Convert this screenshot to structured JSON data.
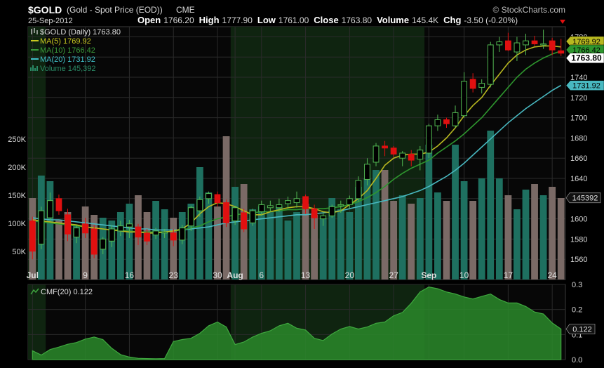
{
  "header": {
    "symbol": "$GOLD",
    "name": "(Gold - Spot Price (EOD))",
    "exchange": "CME",
    "watermark": "© StockCharts.com",
    "date": "25-Sep-2012",
    "ohlc": [
      {
        "label": "Open",
        "value": "1766.20"
      },
      {
        "label": "High",
        "value": "1777.90"
      },
      {
        "label": "Low",
        "value": "1761.00"
      },
      {
        "label": "Close",
        "value": "1763.80"
      },
      {
        "label": "Volume",
        "value": "145.4K"
      },
      {
        "label": "Chg",
        "value": "-3.50 (-0.20%)"
      }
    ]
  },
  "legend": [
    {
      "text": "$GOLD (Daily) 1763.80",
      "color": "#e0e0e0"
    },
    {
      "text": "MA(5) 1769.92",
      "color": "#c8c820"
    },
    {
      "text": "MA(10) 1766.42",
      "color": "#3a9a3a"
    },
    {
      "text": "MA(20) 1731.92",
      "color": "#40c0c8"
    },
    {
      "text": "Volume 145,392",
      "color": "#2a8a66"
    }
  ],
  "colors": {
    "up": "#52b852",
    "down": "#e01010",
    "ma5": "#b8b820",
    "ma10": "#2e962e",
    "ma20": "#48b8c0",
    "vol_up": "#1e7060",
    "vol_down": "#7a6a66",
    "cmf": "#2a8a2a",
    "grid": "#2b2b2b"
  },
  "chart_data": [
    {
      "type": "candlestick",
      "ylim": [
        1540,
        1790
      ],
      "yticks": [
        1560,
        1580,
        1600,
        1620,
        1640,
        1660,
        1680,
        1700,
        1720,
        1740,
        1760,
        1780
      ],
      "volume_ylim": [
        0,
        450000
      ],
      "volume_ticks": [
        {
          "value": 50000,
          "label": "50K"
        },
        {
          "value": 100000,
          "label": "100K"
        },
        {
          "value": 150000,
          "label": "150K"
        },
        {
          "value": 200000,
          "label": "200K"
        },
        {
          "value": 250000,
          "label": "250K"
        }
      ],
      "price_badges": [
        {
          "value": "1769.92",
          "price": 1769.92,
          "color": "#b8b820"
        },
        {
          "value": "1766.42",
          "price": 1766.42,
          "color": "#2e962e"
        },
        {
          "value": "1763.80",
          "price": 1763.8,
          "color": "#ffffff"
        },
        {
          "value": "1731.92",
          "price": 1731.92,
          "color": "#48b8c0"
        }
      ],
      "volume_badge": {
        "value": "145392",
        "volume": 145392
      },
      "xticks": [
        {
          "index": 0,
          "label": "Jul",
          "bold": true
        },
        {
          "index": 6,
          "label": "9"
        },
        {
          "index": 11,
          "label": "16"
        },
        {
          "index": 16,
          "label": "23"
        },
        {
          "index": 21,
          "label": "30"
        },
        {
          "index": 23,
          "label": "Aug",
          "bold": true
        },
        {
          "index": 26,
          "label": "6"
        },
        {
          "index": 31,
          "label": "13"
        },
        {
          "index": 36,
          "label": "20"
        },
        {
          "index": 41,
          "label": "27"
        },
        {
          "index": 45,
          "label": "Sep",
          "bold": true
        },
        {
          "index": 49,
          "label": "10"
        },
        {
          "index": 54,
          "label": "17"
        },
        {
          "index": 59,
          "label": "24"
        }
      ],
      "shaded_ranges": [
        [
          0,
          2
        ],
        [
          23,
          45
        ]
      ],
      "candles": [
        {
          "o": 1598,
          "h": 1602,
          "l": 1560,
          "c": 1568
        },
        {
          "o": 1575,
          "h": 1612,
          "l": 1570,
          "c": 1608
        },
        {
          "o": 1601,
          "h": 1626,
          "l": 1598,
          "c": 1618
        },
        {
          "o": 1620,
          "h": 1624,
          "l": 1604,
          "c": 1608
        },
        {
          "o": 1604,
          "h": 1610,
          "l": 1578,
          "c": 1585
        },
        {
          "o": 1582,
          "h": 1594,
          "l": 1576,
          "c": 1591
        },
        {
          "o": 1595,
          "h": 1601,
          "l": 1581,
          "c": 1586
        },
        {
          "o": 1590,
          "h": 1594,
          "l": 1561,
          "c": 1565
        },
        {
          "o": 1570,
          "h": 1582,
          "l": 1565,
          "c": 1580
        },
        {
          "o": 1578,
          "h": 1594,
          "l": 1572,
          "c": 1590
        },
        {
          "o": 1588,
          "h": 1598,
          "l": 1583,
          "c": 1593
        },
        {
          "o": 1592,
          "h": 1599,
          "l": 1581,
          "c": 1595
        },
        {
          "o": 1592,
          "h": 1595,
          "l": 1574,
          "c": 1582
        },
        {
          "o": 1586,
          "h": 1590,
          "l": 1574,
          "c": 1578
        },
        {
          "o": 1584,
          "h": 1591,
          "l": 1580,
          "c": 1588
        },
        {
          "o": 1586,
          "h": 1590,
          "l": 1581,
          "c": 1587
        },
        {
          "o": 1586,
          "h": 1590,
          "l": 1573,
          "c": 1579
        },
        {
          "o": 1579,
          "h": 1594,
          "l": 1575,
          "c": 1591
        },
        {
          "o": 1593,
          "h": 1613,
          "l": 1588,
          "c": 1611
        },
        {
          "o": 1608,
          "h": 1622,
          "l": 1602,
          "c": 1619
        },
        {
          "o": 1620,
          "h": 1627,
          "l": 1615,
          "c": 1625
        },
        {
          "o": 1624,
          "h": 1627,
          "l": 1612,
          "c": 1616
        },
        {
          "o": 1616,
          "h": 1619,
          "l": 1592,
          "c": 1596
        },
        {
          "o": 1598,
          "h": 1613,
          "l": 1594,
          "c": 1611
        },
        {
          "o": 1606,
          "h": 1610,
          "l": 1587,
          "c": 1590
        },
        {
          "o": 1596,
          "h": 1610,
          "l": 1593,
          "c": 1608
        },
        {
          "o": 1607,
          "h": 1618,
          "l": 1603,
          "c": 1614
        },
        {
          "o": 1611,
          "h": 1618,
          "l": 1607,
          "c": 1613
        },
        {
          "o": 1611,
          "h": 1620,
          "l": 1607,
          "c": 1614
        },
        {
          "o": 1615,
          "h": 1622,
          "l": 1610,
          "c": 1618
        },
        {
          "o": 1616,
          "h": 1627,
          "l": 1611,
          "c": 1620
        },
        {
          "o": 1622,
          "h": 1624,
          "l": 1605,
          "c": 1610
        },
        {
          "o": 1610,
          "h": 1614,
          "l": 1590,
          "c": 1601
        },
        {
          "o": 1600,
          "h": 1606,
          "l": 1593,
          "c": 1603
        },
        {
          "o": 1603,
          "h": 1614,
          "l": 1601,
          "c": 1612
        },
        {
          "o": 1613,
          "h": 1618,
          "l": 1606,
          "c": 1614
        },
        {
          "o": 1614,
          "h": 1623,
          "l": 1610,
          "c": 1620
        },
        {
          "o": 1620,
          "h": 1642,
          "l": 1617,
          "c": 1638
        },
        {
          "o": 1639,
          "h": 1660,
          "l": 1633,
          "c": 1654
        },
        {
          "o": 1656,
          "h": 1675,
          "l": 1652,
          "c": 1672
        },
        {
          "o": 1672,
          "h": 1677,
          "l": 1662,
          "c": 1670
        },
        {
          "o": 1670,
          "h": 1672,
          "l": 1661,
          "c": 1664
        },
        {
          "o": 1660,
          "h": 1667,
          "l": 1652,
          "c": 1665
        },
        {
          "o": 1664,
          "h": 1668,
          "l": 1652,
          "c": 1658
        },
        {
          "o": 1659,
          "h": 1672,
          "l": 1648,
          "c": 1668
        },
        {
          "o": 1665,
          "h": 1694,
          "l": 1660,
          "c": 1692
        },
        {
          "o": 1692,
          "h": 1703,
          "l": 1687,
          "c": 1698
        },
        {
          "o": 1698,
          "h": 1700,
          "l": 1690,
          "c": 1694
        },
        {
          "o": 1692,
          "h": 1712,
          "l": 1690,
          "c": 1705
        },
        {
          "o": 1702,
          "h": 1745,
          "l": 1700,
          "c": 1736
        },
        {
          "o": 1738,
          "h": 1744,
          "l": 1725,
          "c": 1729
        },
        {
          "o": 1730,
          "h": 1738,
          "l": 1724,
          "c": 1734
        },
        {
          "o": 1733,
          "h": 1775,
          "l": 1730,
          "c": 1772
        },
        {
          "o": 1772,
          "h": 1780,
          "l": 1765,
          "c": 1775
        },
        {
          "o": 1776,
          "h": 1784,
          "l": 1766,
          "c": 1767
        },
        {
          "o": 1765,
          "h": 1780,
          "l": 1756,
          "c": 1774
        },
        {
          "o": 1772,
          "h": 1783,
          "l": 1762,
          "c": 1776
        },
        {
          "o": 1776,
          "h": 1781,
          "l": 1771,
          "c": 1773
        },
        {
          "o": 1772,
          "h": 1787,
          "l": 1768,
          "c": 1773
        },
        {
          "o": 1776,
          "h": 1779,
          "l": 1762,
          "c": 1767
        },
        {
          "o": 1766.2,
          "h": 1777.9,
          "l": 1761,
          "c": 1763.8
        }
      ],
      "ma5": [
        1599,
        1598,
        1597,
        1596,
        1595,
        1594,
        1592,
        1591,
        1590,
        1589,
        1588,
        1587,
        1587,
        1586,
        1586,
        1587,
        1588,
        1590,
        1596,
        1605,
        1612,
        1616,
        1615,
        1612,
        1608,
        1604,
        1604,
        1607,
        1609,
        1611,
        1612,
        1612,
        1610,
        1607,
        1606,
        1608,
        1614,
        1620,
        1628,
        1640,
        1653,
        1660,
        1663,
        1664,
        1664,
        1666,
        1672,
        1680,
        1690,
        1702,
        1712,
        1720,
        1732,
        1743,
        1754,
        1762,
        1767,
        1770,
        1771,
        1771,
        1770
      ],
      "ma10": [
        1598,
        1597,
        1596,
        1595,
        1594,
        1593,
        1592,
        1591,
        1590,
        1589,
        1589,
        1588,
        1587,
        1587,
        1587,
        1587,
        1588,
        1589,
        1591,
        1593,
        1597,
        1600,
        1602,
        1604,
        1605,
        1606,
        1607,
        1607,
        1608,
        1609,
        1609,
        1610,
        1610,
        1610,
        1611,
        1612,
        1614,
        1617,
        1621,
        1626,
        1632,
        1639,
        1645,
        1650,
        1654,
        1658,
        1665,
        1671,
        1677,
        1684,
        1692,
        1700,
        1710,
        1720,
        1730,
        1740,
        1748,
        1754,
        1759,
        1763,
        1766
      ],
      "ma20": [
        1601,
        1600,
        1599,
        1599,
        1598,
        1597,
        1596,
        1595,
        1594,
        1593,
        1592,
        1591,
        1590,
        1590,
        1589,
        1589,
        1589,
        1589,
        1590,
        1591,
        1592,
        1594,
        1596,
        1597,
        1598,
        1599,
        1600,
        1601,
        1602,
        1603,
        1604,
        1604,
        1605,
        1606,
        1607,
        1608,
        1610,
        1612,
        1614,
        1616,
        1618,
        1620,
        1622,
        1625,
        1628,
        1632,
        1637,
        1642,
        1648,
        1655,
        1663,
        1671,
        1679,
        1687,
        1695,
        1702,
        1709,
        1715,
        1721,
        1727,
        1732
      ],
      "volume": [
        145000,
        185000,
        175000,
        105000,
        120000,
        95000,
        130000,
        115000,
        110000,
        105000,
        120000,
        135000,
        150000,
        120000,
        140000,
        125000,
        110000,
        120000,
        135000,
        200000,
        155000,
        130000,
        255000,
        165000,
        170000,
        125000,
        130000,
        120000,
        130000,
        105000,
        120000,
        135000,
        115000,
        110000,
        145000,
        125000,
        120000,
        165000,
        180000,
        195000,
        195000,
        140000,
        150000,
        135000,
        145000,
        240000,
        155000,
        140000,
        240000,
        175000,
        140000,
        180000,
        265000,
        180000,
        150000,
        125000,
        160000,
        170000,
        150000,
        165000,
        145000
      ]
    },
    {
      "type": "area",
      "title": "CMF(20) 0.122",
      "ylim": [
        0,
        0.3
      ],
      "yticks": [
        0.0,
        0.1,
        0.2,
        0.3
      ],
      "badge": "0.122",
      "values": [
        0.035,
        0.018,
        0.04,
        0.05,
        0.061,
        0.068,
        0.082,
        0.09,
        0.08,
        0.045,
        0.02,
        0.01,
        0.005,
        0.004,
        0.003,
        0.004,
        0.072,
        0.08,
        0.085,
        0.105,
        0.135,
        0.15,
        0.13,
        0.06,
        0.07,
        0.09,
        0.105,
        0.115,
        0.135,
        0.145,
        0.125,
        0.118,
        0.085,
        0.076,
        0.102,
        0.122,
        0.132,
        0.122,
        0.13,
        0.145,
        0.15,
        0.175,
        0.188,
        0.225,
        0.27,
        0.29,
        0.283,
        0.27,
        0.262,
        0.25,
        0.242,
        0.252,
        0.262,
        0.24,
        0.226,
        0.226,
        0.212,
        0.19,
        0.182,
        0.146,
        0.122
      ]
    }
  ]
}
